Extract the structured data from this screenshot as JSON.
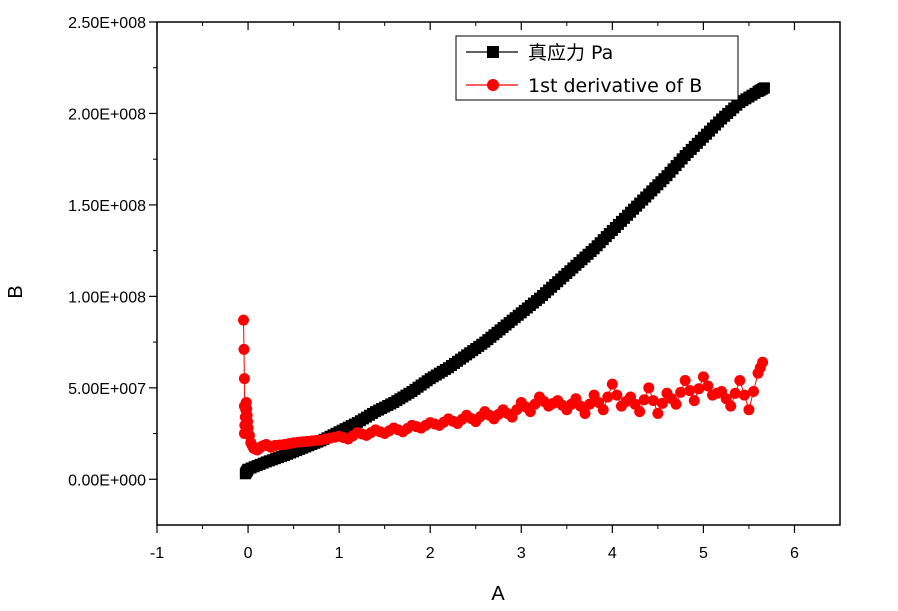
{
  "chart_data": {
    "type": "scatter",
    "xlabel": "A",
    "ylabel": "B",
    "xlim": [
      -1,
      6.5
    ],
    "ylim": [
      -25000000,
      250000000
    ],
    "xticks": [
      -1,
      0,
      1,
      2,
      3,
      4,
      5,
      6
    ],
    "xtick_labels": [
      "-1",
      "0",
      "1",
      "2",
      "3",
      "4",
      "5",
      "6"
    ],
    "yticks": [
      0,
      50000000,
      100000000,
      150000000,
      200000000,
      250000000
    ],
    "ytick_labels": [
      "0.00E+000",
      "5.00E+007",
      "1.00E+008",
      "1.50E+008",
      "2.00E+008",
      "2.50E+008"
    ],
    "grid": false,
    "legend_position": "top-right",
    "series": [
      {
        "name": "真应力 Pa",
        "color": "#000000",
        "marker": "square",
        "x": [
          -0.03,
          0.0,
          0.2,
          0.4,
          0.6,
          0.8,
          1.0,
          1.2,
          1.4,
          1.6,
          1.8,
          2.0,
          2.2,
          2.4,
          2.6,
          2.8,
          3.0,
          3.2,
          3.4,
          3.6,
          3.8,
          4.0,
          4.2,
          4.4,
          4.6,
          4.8,
          5.0,
          5.2,
          5.4,
          5.6,
          5.67
        ],
        "y": [
          3000000,
          5500000,
          9500000,
          13000000,
          17000000,
          21000000,
          26000000,
          31000000,
          37000000,
          42000000,
          48000000,
          55000000,
          61000000,
          68000000,
          75000000,
          83000000,
          91000000,
          99000000,
          108000000,
          117000000,
          126000000,
          136000000,
          146000000,
          156000000,
          166000000,
          177000000,
          187000000,
          197000000,
          206000000,
          212000000,
          214000000
        ]
      },
      {
        "name": "1st derivative of B",
        "color": "#ff0000",
        "marker": "circle",
        "x": [
          -0.05,
          -0.04,
          -0.04,
          -0.03,
          -0.02,
          -0.01,
          0.0,
          0.03,
          0.06,
          0.1,
          0.15,
          0.2,
          0.25,
          0.3,
          0.4,
          0.5,
          0.6,
          0.7,
          0.8,
          0.9,
          1.0,
          1.1,
          1.2,
          1.3,
          1.4,
          1.5,
          1.6,
          1.7,
          1.8,
          1.9,
          2.0,
          2.1,
          2.2,
          2.3,
          2.4,
          2.5,
          2.6,
          2.7,
          2.8,
          2.9,
          3.0,
          3.1,
          3.2,
          3.3,
          3.4,
          3.5,
          3.6,
          3.7,
          3.8,
          3.9,
          4.0,
          4.1,
          4.2,
          4.3,
          4.4,
          4.5,
          4.6,
          4.7,
          4.8,
          4.9,
          5.0,
          5.1,
          5.2,
          5.3,
          5.4,
          5.5,
          5.6,
          5.65
        ],
        "y": [
          87000000,
          55000000,
          25000000,
          34000000,
          42000000,
          35000000,
          28000000,
          20000000,
          17000000,
          16000000,
          18000000,
          19000000,
          17500000,
          18500000,
          19000000,
          20000000,
          20500000,
          21000000,
          21500000,
          22500000,
          23500000,
          22000000,
          25500000,
          24000000,
          27000000,
          25000000,
          28000000,
          26000000,
          29500000,
          28000000,
          31000000,
          29500000,
          33000000,
          30500000,
          35000000,
          31500000,
          37000000,
          33000000,
          38000000,
          34000000,
          42000000,
          37000000,
          45000000,
          40000000,
          43000000,
          38000000,
          44000000,
          36000000,
          46000000,
          38000000,
          52000000,
          40000000,
          45000000,
          37000000,
          50000000,
          36000000,
          47000000,
          41000000,
          54000000,
          43000000,
          56000000,
          46000000,
          48000000,
          40000000,
          54000000,
          38000000,
          58000000,
          64000000
        ]
      }
    ]
  }
}
